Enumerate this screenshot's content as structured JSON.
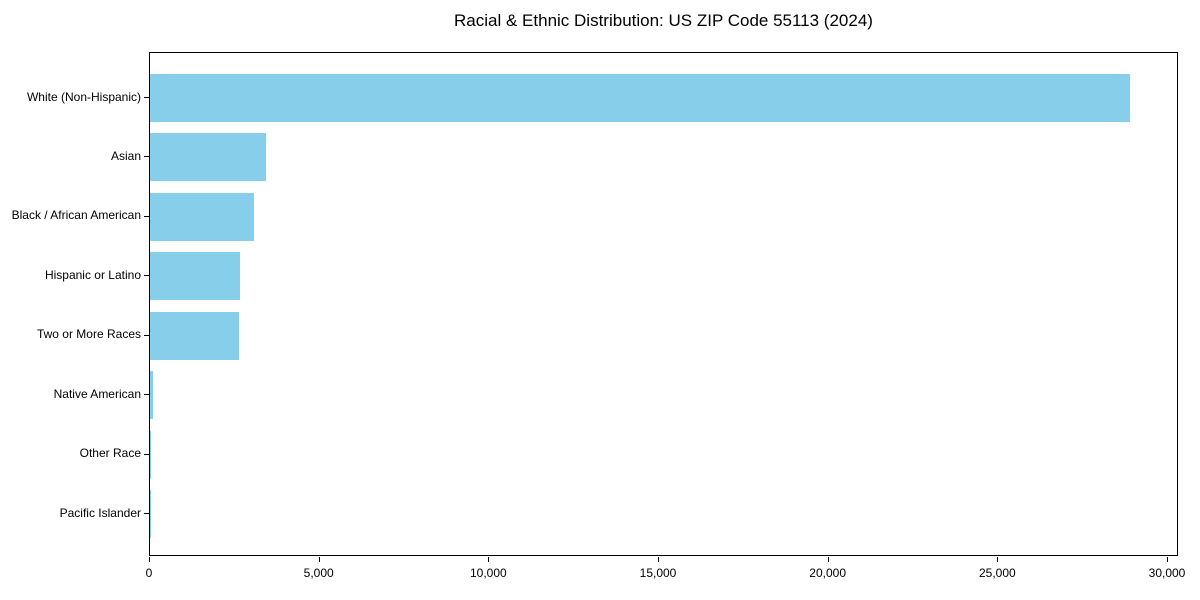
{
  "title": "Racial & Ethnic Distribution: US ZIP Code 55113 (2024)",
  "chart_data": {
    "type": "bar",
    "orientation": "horizontal",
    "title": "Racial & Ethnic Distribution: US ZIP Code 55113 (2024)",
    "categories": [
      "White (Non-Hispanic)",
      "Asian",
      "Black / African American",
      "Hispanic or Latino",
      "Two or More Races",
      "Native American",
      "Other Race",
      "Pacific Islander"
    ],
    "values": [
      28880,
      3420,
      3050,
      2650,
      2620,
      75,
      30,
      10
    ],
    "xlabel": "",
    "ylabel": "",
    "xlim": [
      0,
      30000
    ],
    "x_ticks": [
      0,
      5000,
      10000,
      15000,
      20000,
      25000,
      30000
    ],
    "x_tick_labels": [
      "0",
      "5,000",
      "10,000",
      "15,000",
      "20,000",
      "25,000",
      "30,000"
    ],
    "grid": false,
    "legend": "none",
    "bar_color": "#87CEEB",
    "axis_color": "#000000",
    "background_color": "#ffffff"
  }
}
